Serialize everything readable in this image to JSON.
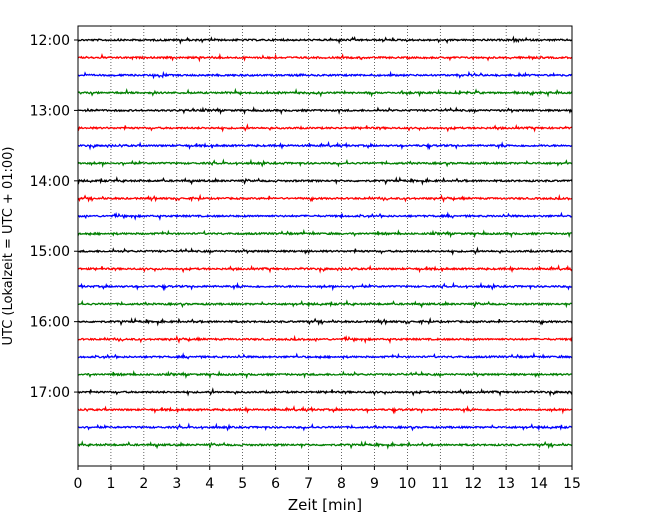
{
  "chart_data": {
    "type": "line",
    "title": "",
    "xlabel": "Zeit  [min]",
    "ylabel": "UTC (Lokalzeit = UTC + 01:00)",
    "xlim": [
      0,
      15
    ],
    "ylim_minutes_utc": [
      720,
      1083
    ],
    "y_inverted": true,
    "grid": "x-dotted",
    "x_ticks": [
      "0",
      "1",
      "2",
      "3",
      "4",
      "5",
      "6",
      "7",
      "8",
      "9",
      "10",
      "11",
      "12",
      "13",
      "14",
      "15"
    ],
    "y_ticks": [
      {
        "label": "12:00",
        "minute_utc": 720
      },
      {
        "label": "13:00",
        "minute_utc": 780
      },
      {
        "label": "14:00",
        "minute_utc": 840
      },
      {
        "label": "15:00",
        "minute_utc": 900
      },
      {
        "label": "16:00",
        "minute_utc": 960
      },
      {
        "label": "17:00",
        "minute_utc": 1020
      }
    ],
    "trace_colors": [
      "#000000",
      "#ff0000",
      "#0000ff",
      "#007f00"
    ],
    "traces": [
      {
        "start": "12:00",
        "color": "#000000"
      },
      {
        "start": "12:15",
        "color": "#ff0000"
      },
      {
        "start": "12:30",
        "color": "#0000ff"
      },
      {
        "start": "12:45",
        "color": "#007f00"
      },
      {
        "start": "13:00",
        "color": "#000000"
      },
      {
        "start": "13:15",
        "color": "#ff0000"
      },
      {
        "start": "13:30",
        "color": "#0000ff"
      },
      {
        "start": "13:45",
        "color": "#007f00"
      },
      {
        "start": "14:00",
        "color": "#000000"
      },
      {
        "start": "14:15",
        "color": "#ff0000"
      },
      {
        "start": "14:30",
        "color": "#0000ff"
      },
      {
        "start": "14:45",
        "color": "#007f00"
      },
      {
        "start": "15:00",
        "color": "#000000"
      },
      {
        "start": "15:15",
        "color": "#ff0000"
      },
      {
        "start": "15:30",
        "color": "#0000ff"
      },
      {
        "start": "15:45",
        "color": "#007f00"
      },
      {
        "start": "16:00",
        "color": "#000000"
      },
      {
        "start": "16:15",
        "color": "#ff0000"
      },
      {
        "start": "16:30",
        "color": "#0000ff"
      },
      {
        "start": "16:45",
        "color": "#007f00"
      },
      {
        "start": "17:00",
        "color": "#000000"
      },
      {
        "start": "17:15",
        "color": "#ff0000"
      },
      {
        "start": "17:30",
        "color": "#0000ff"
      },
      {
        "start": "17:45",
        "color": "#007f00"
      }
    ]
  }
}
